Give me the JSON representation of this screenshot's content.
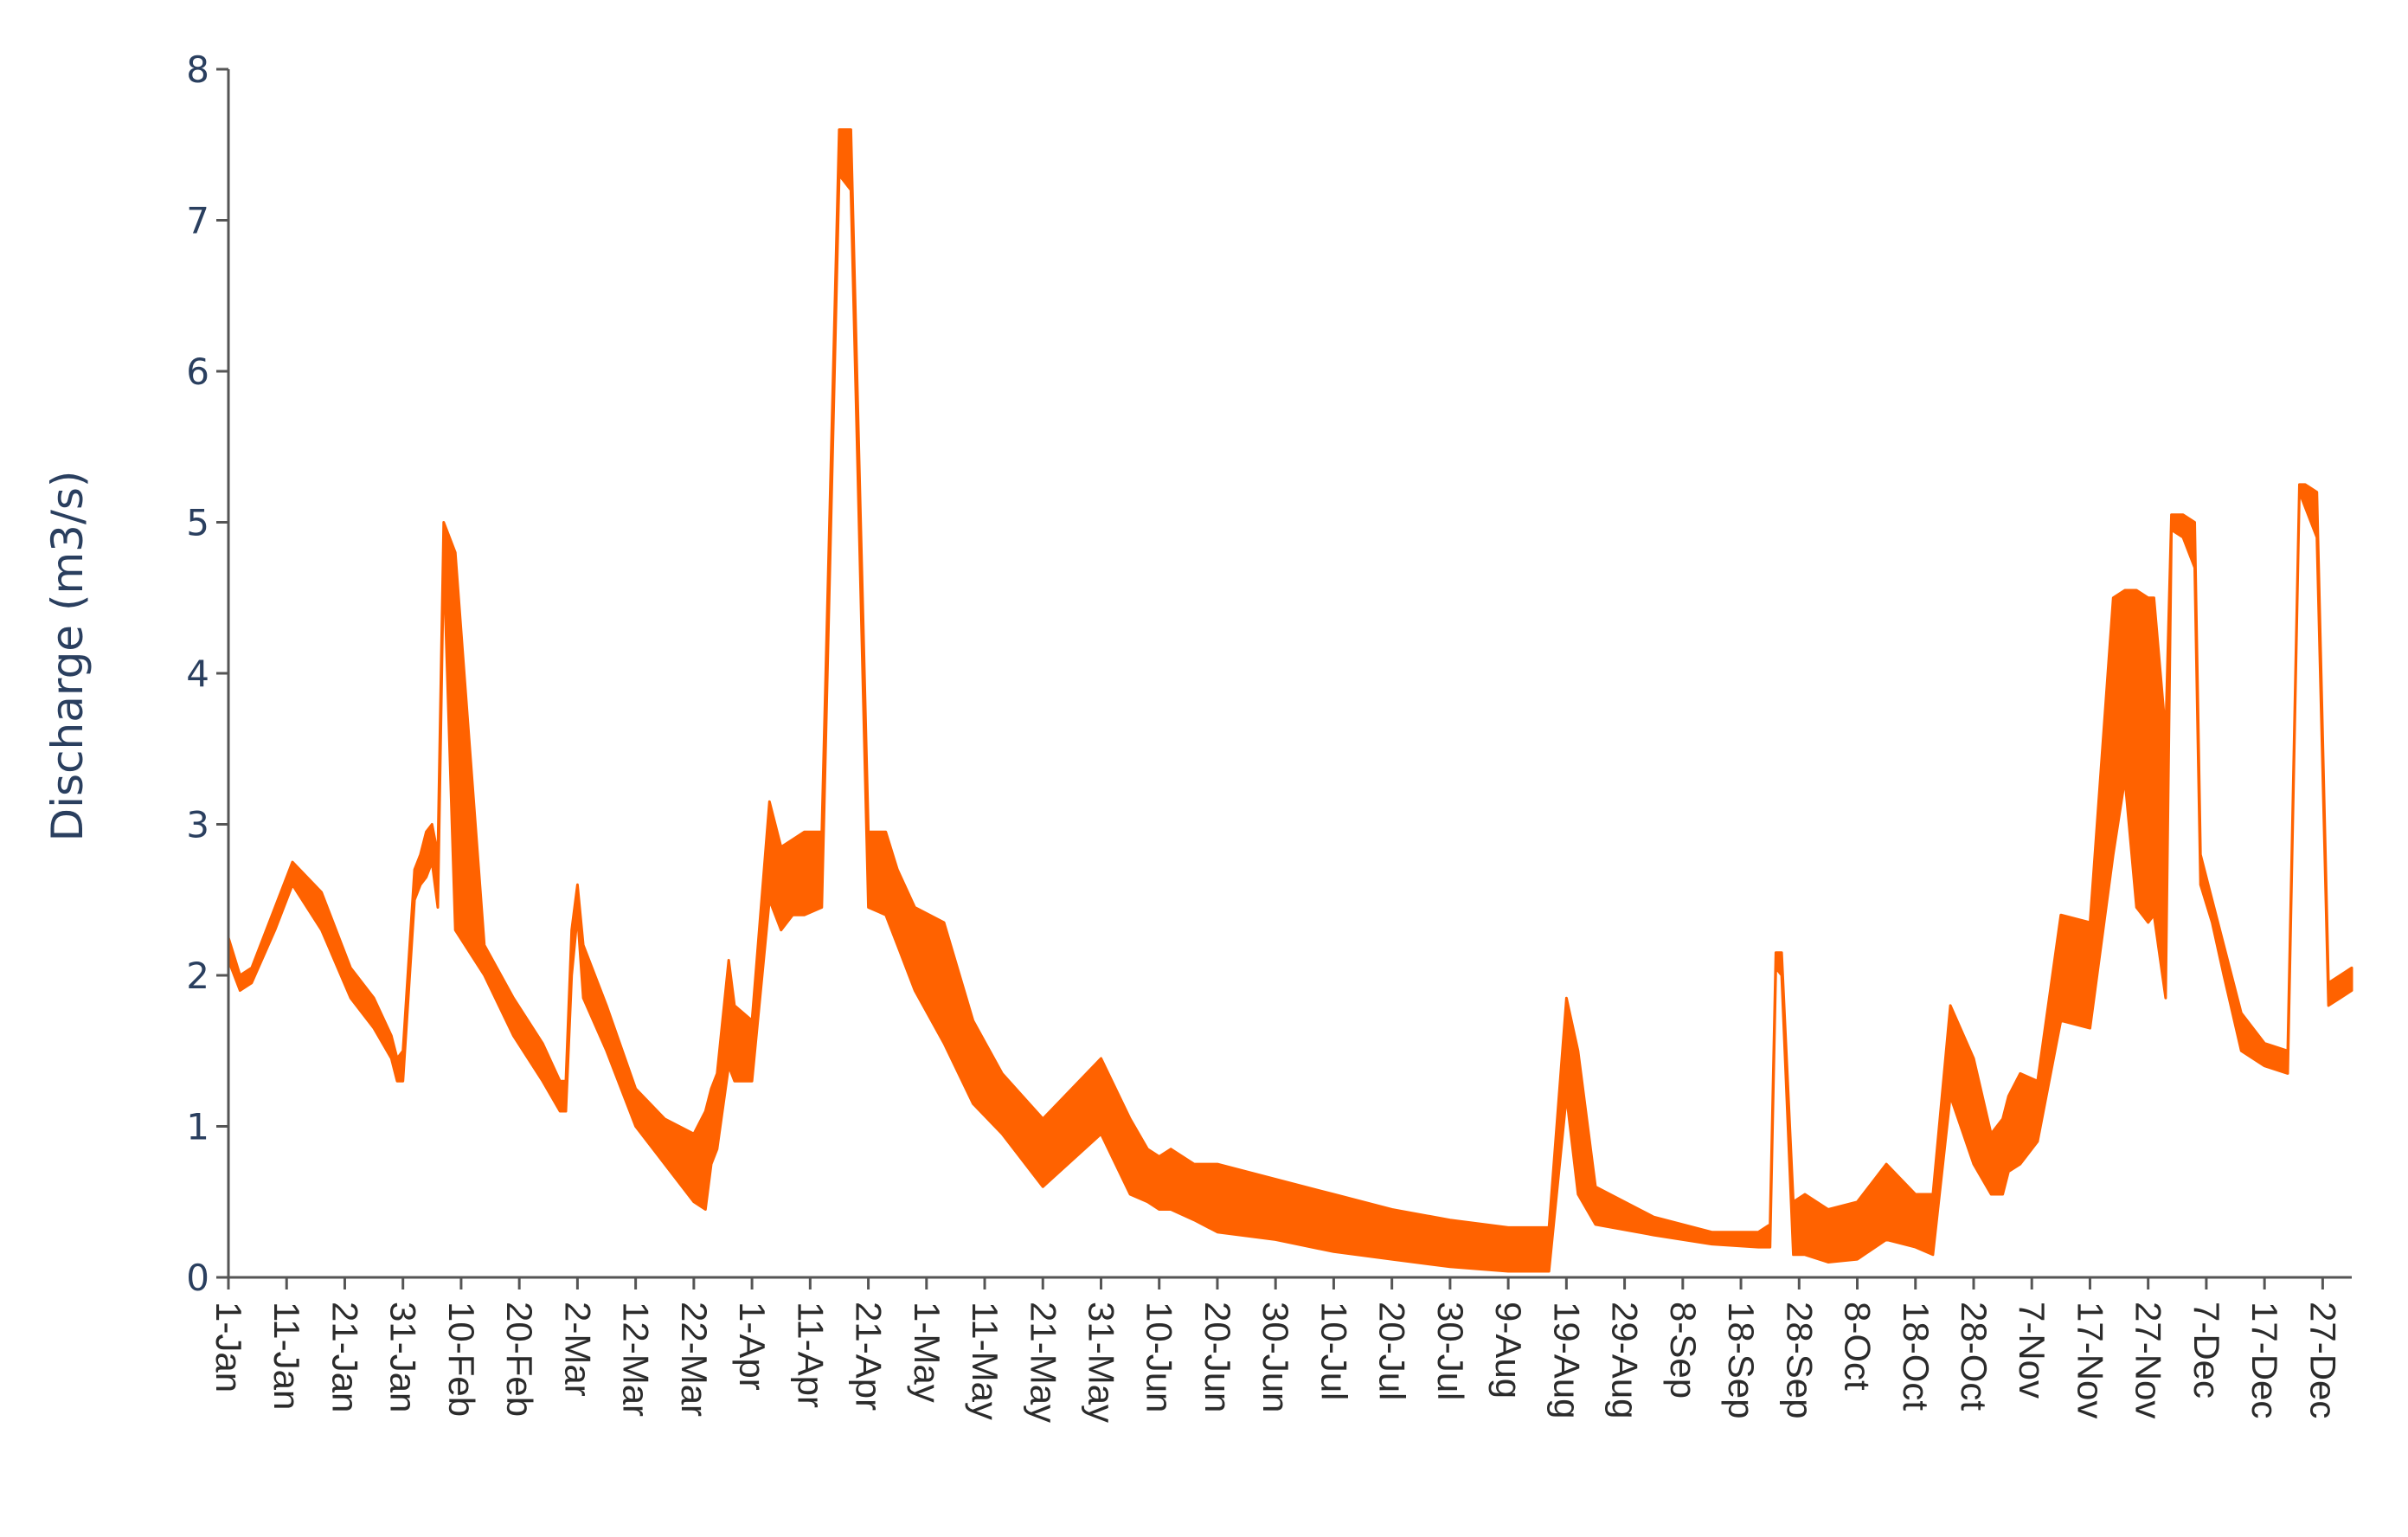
{
  "chart_data": {
    "type": "area",
    "title": "",
    "xlabel": "",
    "ylabel": "Discharge (m3/s)",
    "ylim": [
      0,
      8
    ],
    "yticks": [
      0,
      1,
      2,
      3,
      4,
      5,
      6,
      7,
      8
    ],
    "grid": false,
    "legend": "none",
    "xticks": [
      "1-Jan",
      "11-Jan",
      "21-Jan",
      "31-Jan",
      "10-Feb",
      "20-Feb",
      "2-Mar",
      "12-Mar",
      "22-Mar",
      "1-Apr",
      "11-Apr",
      "21-Apr",
      "1-May",
      "11-May",
      "21-May",
      "31-May",
      "10-Jun",
      "20-Jun",
      "30-Jun",
      "10-Jul",
      "20-Jul",
      "30-Jul",
      "9-Aug",
      "19-Aug",
      "29-Aug",
      "8-Sep",
      "18-Sep",
      "28-Sep",
      "8-Oct",
      "18-Oct",
      "28-Oct",
      "7-Nov",
      "17-Nov",
      "27-Nov",
      "7-Dec",
      "17-Dec",
      "27-Dec"
    ],
    "series": [
      {
        "color": "#ff6200",
        "x": [
          1,
          3,
          5,
          9,
          12,
          17,
          22,
          26,
          29,
          30,
          31,
          33,
          34,
          35,
          36,
          37,
          38,
          40,
          45,
          50,
          55,
          58,
          59,
          60,
          61,
          62,
          66,
          71,
          76,
          81,
          83,
          84,
          85,
          87,
          88,
          91,
          94,
          96,
          98,
          100,
          103,
          106,
          108,
          111,
          114,
          116,
          119,
          124,
          129,
          134,
          141,
          151,
          156,
          159,
          161,
          163,
          167,
          171,
          181,
          191,
          201,
          211,
          221,
          228,
          231,
          233,
          236,
          246,
          256,
          264,
          266,
          267,
          268,
          270,
          272,
          276,
          281,
          286,
          291,
          294,
          297,
          301,
          304,
          306,
          307,
          309,
          312,
          316,
          321,
          325,
          327,
          329,
          331,
          332,
          334,
          335,
          337,
          339,
          340,
          342,
          344,
          347,
          351,
          355,
          357,
          358,
          360,
          362,
          364,
          366
        ],
        "upper": [
          2.25,
          2.0,
          2.05,
          2.45,
          2.75,
          2.55,
          2.05,
          1.85,
          1.6,
          1.45,
          1.5,
          2.7,
          2.8,
          2.95,
          3.0,
          2.8,
          5.0,
          4.8,
          2.2,
          1.85,
          1.55,
          1.3,
          1.3,
          2.3,
          2.6,
          2.2,
          1.8,
          1.25,
          1.05,
          0.95,
          1.1,
          1.25,
          1.35,
          2.1,
          1.8,
          1.7,
          3.15,
          2.85,
          2.9,
          2.95,
          2.95,
          7.6,
          7.6,
          2.95,
          2.95,
          2.7,
          2.45,
          2.35,
          1.7,
          1.35,
          1.05,
          1.45,
          1.05,
          0.85,
          0.8,
          0.85,
          0.75,
          0.75,
          0.65,
          0.55,
          0.45,
          0.38,
          0.33,
          0.33,
          1.85,
          1.5,
          0.6,
          0.4,
          0.3,
          0.3,
          0.35,
          2.15,
          2.15,
          0.5,
          0.55,
          0.45,
          0.5,
          0.75,
          0.55,
          0.55,
          1.8,
          1.45,
          0.95,
          1.05,
          1.2,
          1.35,
          1.3,
          2.4,
          2.35,
          4.5,
          4.55,
          4.55,
          4.5,
          4.5,
          3.6,
          5.05,
          5.05,
          5.0,
          2.8,
          2.5,
          2.2,
          1.75,
          1.55,
          1.5,
          5.25,
          5.25,
          5.2,
          1.95,
          2.0,
          2.05
        ],
        "lower": [
          2.1,
          1.9,
          1.95,
          2.3,
          2.6,
          2.3,
          1.85,
          1.65,
          1.45,
          1.3,
          1.3,
          2.5,
          2.6,
          2.65,
          2.75,
          2.45,
          4.75,
          2.3,
          2.0,
          1.6,
          1.3,
          1.1,
          1.1,
          2.0,
          2.4,
          1.85,
          1.5,
          1.0,
          0.75,
          0.5,
          0.45,
          0.75,
          0.85,
          1.4,
          1.3,
          1.3,
          2.5,
          2.3,
          2.4,
          2.4,
          2.45,
          7.3,
          7.2,
          2.45,
          2.4,
          2.2,
          1.9,
          1.55,
          1.15,
          0.95,
          0.6,
          0.95,
          0.55,
          0.5,
          0.45,
          0.45,
          0.38,
          0.3,
          0.25,
          0.17,
          0.12,
          0.07,
          0.04,
          0.04,
          1.2,
          0.55,
          0.35,
          0.28,
          0.22,
          0.2,
          0.2,
          2.05,
          2.0,
          0.15,
          0.15,
          0.1,
          0.12,
          0.25,
          0.2,
          0.15,
          1.2,
          0.75,
          0.55,
          0.55,
          0.7,
          0.75,
          0.9,
          1.7,
          1.65,
          2.8,
          3.3,
          2.45,
          2.35,
          2.4,
          1.85,
          4.95,
          4.9,
          4.7,
          2.6,
          2.35,
          2.0,
          1.5,
          1.4,
          1.35,
          5.2,
          5.1,
          4.9,
          1.8,
          1.85,
          1.9
        ]
      }
    ]
  }
}
